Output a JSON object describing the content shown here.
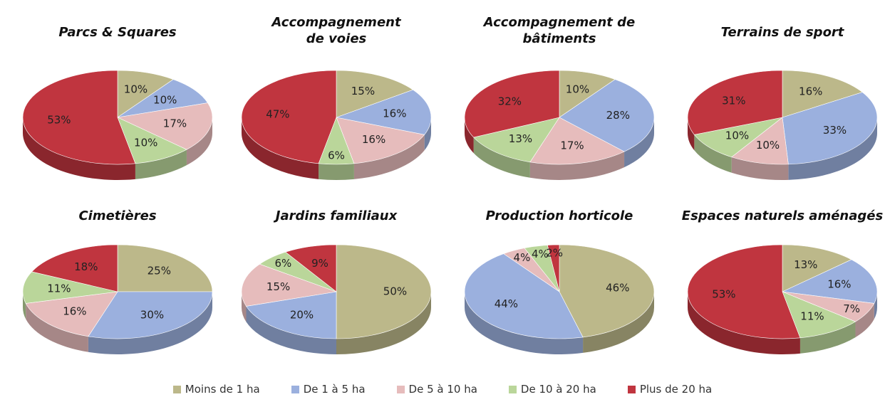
{
  "legend": {
    "categories": [
      "Moins de 1 ha",
      "De 1 à 5 ha",
      "De 5 à 10 ha",
      "De 10 à 20 ha",
      "Plus de 20 ha"
    ],
    "colors": [
      "#bcb88a",
      "#9bb0de",
      "#e6bcbc",
      "#bad69a",
      "#c0353f"
    ]
  },
  "chart_data": [
    {
      "type": "pie",
      "title": "Parcs & Squares",
      "values": [
        10,
        10,
        17,
        10,
        53
      ],
      "value_labels": [
        "10%",
        "10%",
        "17%",
        "10%",
        "53%"
      ]
    },
    {
      "type": "pie",
      "title": "Accompagnement\nde voies",
      "values": [
        15,
        16,
        16,
        6,
        47
      ],
      "value_labels": [
        "15%",
        "16%",
        "16%",
        "6%",
        "47%"
      ]
    },
    {
      "type": "pie",
      "title": "Accompagnement de\nbâtiments",
      "values": [
        10,
        28,
        17,
        13,
        32
      ],
      "value_labels": [
        "10%",
        "28%",
        "17%",
        "13%",
        "32%"
      ]
    },
    {
      "type": "pie",
      "title": "Terrains de sport",
      "values": [
        16,
        33,
        10,
        10,
        31
      ],
      "value_labels": [
        "16%",
        "33%",
        "10%",
        "10%",
        "31%"
      ]
    },
    {
      "type": "pie",
      "title": "Cimetières",
      "values": [
        25,
        30,
        16,
        11,
        18
      ],
      "value_labels": [
        "25%",
        "30%",
        "16%",
        "11%",
        "18%"
      ]
    },
    {
      "type": "pie",
      "title": "Jardins familiaux",
      "values": [
        50,
        20,
        15,
        6,
        9
      ],
      "value_labels": [
        "50%",
        "20%",
        "15%",
        "6%",
        "9%"
      ]
    },
    {
      "type": "pie",
      "title": "Production horticole",
      "values": [
        46,
        44,
        4,
        4,
        2
      ],
      "value_labels": [
        "46%",
        "44%",
        "4%",
        "4%",
        "2%"
      ]
    },
    {
      "type": "pie",
      "title": "Espaces naturels aménagés",
      "values": [
        13,
        16,
        7,
        11,
        53
      ],
      "value_labels": [
        "13%",
        "16%",
        "7%",
        "11%",
        "53%"
      ]
    }
  ]
}
